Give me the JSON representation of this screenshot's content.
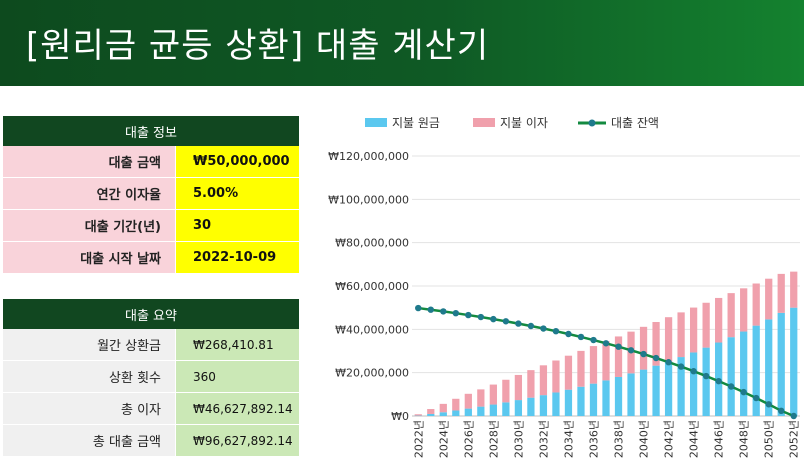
{
  "title": "[원리금 균등 상환] 대출 계산기",
  "loan_info": {
    "header": "대출 정보",
    "rows": [
      {
        "label": "대출 금액",
        "value": "₩50,000,000"
      },
      {
        "label": "연간 이자율",
        "value": "5.00%"
      },
      {
        "label": "대출 기간(년)",
        "value": "30"
      },
      {
        "label": "대출 시작 날짜",
        "value": "2022-10-09"
      }
    ]
  },
  "loan_summary": {
    "header": "대출 요약",
    "rows": [
      {
        "label": "월간 상환금",
        "value": "₩268,410.81"
      },
      {
        "label": "상환 횟수",
        "value": "360"
      },
      {
        "label": "총 이자",
        "value": "₩46,627,892.14"
      },
      {
        "label": "총 대출 금액",
        "value": "₩96,627,892.14"
      }
    ]
  },
  "colors": {
    "principal": "#5bc8ef",
    "interest": "#f0a0ac",
    "balance": "#138a40",
    "balance_marker": "#1f7a8c"
  },
  "chart_data": {
    "type": "bar",
    "stacked": true,
    "legend": [
      "지불 원금",
      "지불 이자",
      "대출 잔액"
    ],
    "y_ticks": [
      "₩120,000,000",
      "₩100,000,000",
      "₩80,000,000",
      "₩60,000,000",
      "₩40,000,000",
      "₩20,000,000",
      "₩0"
    ],
    "ylim": [
      0,
      120000000
    ],
    "x_tick_labels": [
      "2022년",
      "2024년",
      "2026년",
      "2028년",
      "2030년",
      "2032년",
      "2034년",
      "2036년",
      "2038년",
      "2040년",
      "2042년",
      "2044년",
      "2046년",
      "2048년",
      "2050년",
      "2052년"
    ],
    "categories": [
      "2022년",
      "2023년",
      "2024년",
      "2025년",
      "2026년",
      "2027년",
      "2028년",
      "2029년",
      "2030년",
      "2031년",
      "2032년",
      "2033년",
      "2034년",
      "2035년",
      "2036년",
      "2037년",
      "2038년",
      "2039년",
      "2040년",
      "2041년",
      "2042년",
      "2043년",
      "2044년",
      "2045년",
      "2046년",
      "2047년",
      "2048년",
      "2049년",
      "2050년",
      "2051년",
      "2052년"
    ],
    "series": [
      {
        "name": "지불 원금",
        "values": [
          184000,
          938000,
          1724000,
          2549000,
          3416000,
          4327000,
          5285000,
          6291000,
          7349000,
          8461000,
          9630000,
          10859000,
          12151000,
          13510000,
          14937000,
          16438000,
          18015000,
          19674000,
          21417000,
          23249000,
          25174000,
          27199000,
          29326000,
          31563000,
          33914000,
          36385000,
          38983000,
          41713000,
          44583000,
          47601000,
          50000000
        ]
      },
      {
        "name": "지불 이자",
        "values": [
          621000,
          2283000,
          3878000,
          5397000,
          6827000,
          7958000,
          9221000,
          10436000,
          11599000,
          12708000,
          13760000,
          14752000,
          15681000,
          16544000,
          17338000,
          18058000,
          18703000,
          19266000,
          19744000,
          20133000,
          20429000,
          20626000,
          20720000,
          20704000,
          20574000,
          20324000,
          19947000,
          19438000,
          18789000,
          17992000,
          16628000
        ]
      },
      {
        "name": "대출 잔액",
        "values": [
          49816000,
          49062000,
          48276000,
          47451000,
          46584000,
          45673000,
          44715000,
          43709000,
          42651000,
          41539000,
          40370000,
          39141000,
          37849000,
          36490000,
          35063000,
          33562000,
          31985000,
          30326000,
          28583000,
          26751000,
          24826000,
          22801000,
          20674000,
          18437000,
          16086000,
          13615000,
          11017000,
          8287000,
          5417000,
          2399000,
          0
        ]
      }
    ]
  }
}
